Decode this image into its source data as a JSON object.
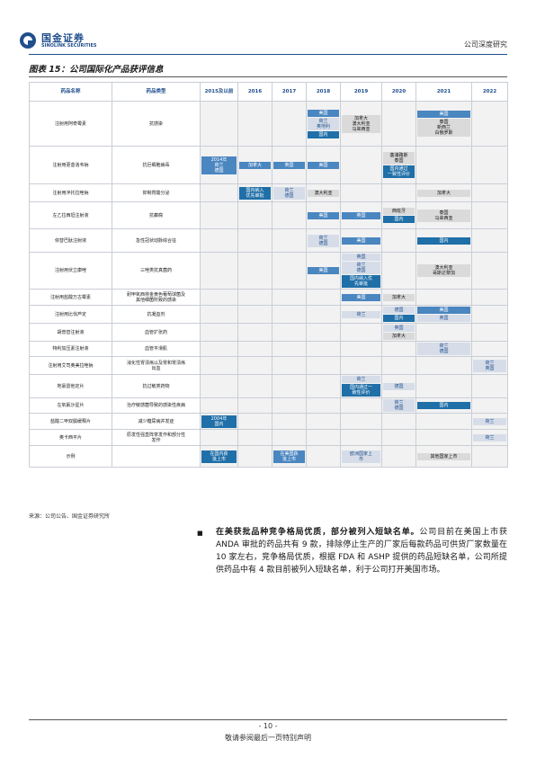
{
  "header": {
    "logo_cn": "国金证券",
    "logo_en": "SINOLINK SECURITIES",
    "report_type": "公司深度研究"
  },
  "figure": {
    "title": "图表 15：公司国际化产品获评信息",
    "source": "来源：公司公告、国金证券研究所"
  },
  "colors": {
    "china": "#1f6fa8",
    "eu_launch": "#d6dde8",
    "us_launch": "#4a86c0",
    "other_launch": "#dadada"
  },
  "table": {
    "headers": [
      "药品名称",
      "药品类型",
      "2015及以前",
      "2016",
      "2017",
      "2018",
      "2019",
      "2020",
      "2021",
      "2022"
    ],
    "rows": [
      {
        "name": "注射用阿奇霉素",
        "type": "抗感染",
        "cells": [
          [],
          [],
          [],
          [
            {
              "t": "美国",
              "k": "us"
            },
            {
              "t": "荷兰\n奥地利",
              "k": "eu"
            },
            {
              "t": "国内",
              "k": "cn"
            }
          ],
          [
            {
              "t": "加拿大\n澳大利亚\n马来西亚",
              "k": "other"
            }
          ],
          [],
          [
            {
              "t": "美国",
              "k": "us"
            },
            {
              "t": "泰国\n新西兰\n白俄罗斯",
              "k": "other"
            }
          ],
          []
        ]
      },
      {
        "name": "注射用更昔洛韦钠",
        "type": "抗巨细胞病毒",
        "cells": [
          [
            {
              "t": "2014年\n荷兰\n德国",
              "k": "us"
            }
          ],
          [
            {
              "t": "加拿大",
              "k": "us"
            }
          ],
          [
            {
              "t": "英国",
              "k": "us"
            }
          ],
          [
            {
              "t": "美国",
              "k": "us"
            }
          ],
          [],
          [
            {
              "t": "塞浦路斯\n泰国",
              "k": "other"
            },
            {
              "t": "国内通过\n一致性评价",
              "k": "cn"
            }
          ],
          [],
          []
        ]
      },
      {
        "name": "注射用泮托拉唑钠",
        "type": "抑制胃酸分泌",
        "cells": [
          [],
          [
            {
              "t": "国内纳入\n优先审批",
              "k": "cn"
            }
          ],
          [
            {
              "t": "荷兰\n德国",
              "k": "eu"
            }
          ],
          [
            {
              "t": "澳大利亚",
              "k": "other"
            }
          ],
          [],
          [],
          [
            {
              "t": "加拿大",
              "k": "other"
            }
          ],
          []
        ]
      },
      {
        "name": "左乙拉西坦注射液",
        "type": "抗癫痫",
        "cells": [
          [],
          [],
          [],
          [
            {
              "t": "美国",
              "k": "us"
            }
          ],
          [
            {
              "t": "英国",
              "k": "us"
            }
          ],
          [
            {
              "t": "西班牙",
              "k": "other"
            },
            {
              "t": "国内",
              "k": "cn"
            }
          ],
          [
            {
              "t": "泰国\n马来西亚",
              "k": "other"
            }
          ],
          []
        ]
      },
      {
        "name": "依替巴肽注射液",
        "type": "急性冠状动脉综合征",
        "cells": [
          [],
          [],
          [],
          [
            {
              "t": "荷兰\n德国",
              "k": "eu"
            }
          ],
          [
            {
              "t": "美国",
              "k": "us"
            }
          ],
          [],
          [
            {
              "t": "国内",
              "k": "cn"
            }
          ],
          []
        ]
      },
      {
        "name": "注射用伏立康唑",
        "type": "三唑类抗真菌药",
        "cells": [
          [],
          [],
          [],
          [
            {
              "t": "美国",
              "k": "us"
            }
          ],
          [
            {
              "t": "英国",
              "k": "eu"
            },
            {
              "t": "荷兰\n德国",
              "k": "eu"
            },
            {
              "t": "国内纳入优\n先审批",
              "k": "cn"
            }
          ],
          [],
          [
            {
              "t": "澳大利亚\n哥斯达黎加",
              "k": "other"
            }
          ],
          []
        ]
      },
      {
        "name": "注射用盐酸万古霉素",
        "type": "耐甲氧西林金黄色葡萄球菌及\n其他细菌所致的感染",
        "cells": [
          [],
          [],
          [],
          [],
          [
            {
              "t": "美国",
              "k": "us"
            }
          ],
          [
            {
              "t": "加拿大",
              "k": "other"
            }
          ],
          [],
          []
        ]
      },
      {
        "name": "注射用比伐芦定",
        "type": "抗凝血剂",
        "cells": [
          [],
          [],
          [],
          [],
          [
            {
              "t": "荷兰",
              "k": "eu"
            }
          ],
          [
            {
              "t": "德国",
              "k": "eu"
            },
            {
              "t": "国内",
              "k": "cn"
            }
          ],
          [
            {
              "t": "美国",
              "k": "us"
            },
            {
              "t": "英国",
              "k": "eu"
            }
          ],
          []
        ]
      },
      {
        "name": "胡普替注射液",
        "type": "血管扩张药",
        "cells": [
          [],
          [],
          [],
          [],
          [],
          [
            {
              "t": "英国",
              "k": "eu"
            },
            {
              "t": "加拿大",
              "k": "other"
            }
          ],
          [],
          []
        ]
      },
      {
        "name": "特利加压素注射液",
        "type": "血管平滑肌",
        "cells": [
          [],
          [],
          [],
          [],
          [],
          [],
          [
            {
              "t": "荷兰\n德国",
              "k": "eu"
            }
          ],
          []
        ]
      },
      {
        "name": "注射用艾司奥美拉唑钠",
        "type": "消化性胃溃疡以及胃和胃溃疡\n出血",
        "cells": [
          [],
          [],
          [],
          [],
          [],
          [],
          [],
          [
            {
              "t": "荷兰\n英国",
              "k": "eu"
            }
          ]
        ]
      },
      {
        "name": "地氯雷他定片",
        "type": "抗过敏类药物",
        "cells": [
          [],
          [],
          [],
          [],
          [
            {
              "t": "荷兰",
              "k": "eu"
            },
            {
              "t": "国内通过一\n致性评价",
              "k": "cn"
            }
          ],
          [
            {
              "t": "德国",
              "k": "eu"
            }
          ],
          [],
          []
        ]
      },
      {
        "name": "左氧氟沙星片",
        "type": "治疗敏感菌导致的感染性疾病",
        "cells": [
          [],
          [],
          [],
          [],
          [],
          [
            {
              "t": "荷兰\n德国",
              "k": "eu"
            }
          ],
          [
            {
              "t": "国内",
              "k": "cn"
            }
          ],
          []
        ]
      },
      {
        "name": "盐酸二甲双胍缓释片",
        "type": "减少糖尿病并发症",
        "cells": [
          [
            {
              "t": "2004年\n国内",
              "k": "cn"
            }
          ],
          [],
          [],
          [],
          [],
          [],
          [],
          [
            {
              "t": "荷兰",
              "k": "eu"
            }
          ]
        ]
      },
      {
        "name": "奥卡西平片",
        "type": "原发性强直阵挛发作和部分性\n发作",
        "cells": [
          [],
          [],
          [],
          [],
          [],
          [],
          [],
          [
            {
              "t": "荷兰",
              "k": "eu"
            }
          ]
        ]
      },
      {
        "name": "示例",
        "type": "",
        "cells": [
          [
            {
              "t": "在国内获\n批上市",
              "k": "cn"
            }
          ],
          [],
          [
            {
              "t": "在美国获\n批上市",
              "k": "us"
            }
          ],
          [],
          [
            {
              "t": "欧洲国家上\n市",
              "k": "eu"
            }
          ],
          [],
          [
            {
              "t": "其他国家上市",
              "k": "other"
            }
          ],
          []
        ]
      }
    ]
  },
  "paragraph": {
    "lead": "在美获批品种竞争格局优质，部分被列入短缺名单。",
    "body": "公司目前在美国上市获 ANDA 审批的药品共有 9 款，排除停止生产的厂家后每款药品可供货厂家数量在 10 家左右，竞争格局优质，根据 FDA 和 ASHP 提供的药品短缺名单，公司所提供药品中有 4 款目前被列入短缺名单，利于公司打开美国市场。"
  },
  "footer": {
    "page": "- 10 -",
    "disclaimer": "敬请参阅最后一页特别声明"
  }
}
